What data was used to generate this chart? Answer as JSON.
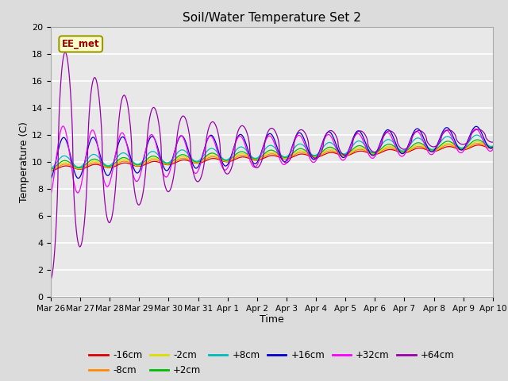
{
  "title": "Soil/Water Temperature Set 2",
  "xlabel": "Time",
  "ylabel": "Temperature (C)",
  "ylim": [
    0,
    20
  ],
  "yticks": [
    0,
    2,
    4,
    6,
    8,
    10,
    12,
    14,
    16,
    18,
    20
  ],
  "bg_color": "#dcdcdc",
  "plot_bg_color": "#e8e8e8",
  "annotation_text": "EE_met",
  "annotation_bg": "#ffffcc",
  "annotation_border": "#999900",
  "annotation_text_color": "#990000",
  "colors": {
    "-16cm": "#dd0000",
    "-8cm": "#ff8800",
    "-2cm": "#dddd00",
    "+2cm": "#00bb00",
    "+8cm": "#00bbbb",
    "+16cm": "#0000cc",
    "+32cm": "#ff00ff",
    "+64cm": "#9900aa"
  },
  "date_labels": [
    "Mar 26",
    "Mar 27",
    "Mar 28",
    "Mar 29",
    "Mar 30",
    "Mar 31",
    "Apr 1",
    "Apr 2",
    "Apr 3",
    "Apr 4",
    "Apr 5",
    "Apr 6",
    "Apr 7",
    "Apr 8",
    "Apr 9",
    "Apr 10"
  ],
  "date_positions": [
    0,
    1,
    2,
    3,
    4,
    5,
    6,
    7,
    8,
    9,
    10,
    11,
    12,
    13,
    14,
    15
  ]
}
